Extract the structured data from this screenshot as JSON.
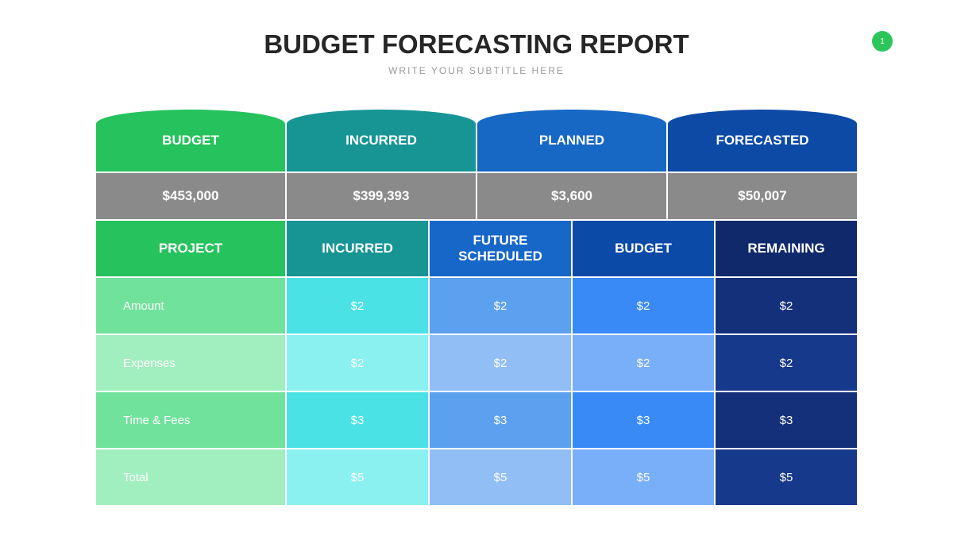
{
  "header": {
    "title": "BUDGET FORECASTING REPORT",
    "subtitle": "WRITE YOUR SUBTITLE HERE",
    "page_number": "1"
  },
  "summary": {
    "labels": [
      "BUDGET",
      "INCURRED",
      "PLANNED",
      "FORECASTED"
    ],
    "values": [
      "$453,000",
      "$399,393",
      "$3,600",
      "$50,007"
    ]
  },
  "table": {
    "headers": [
      "PROJECT",
      "INCURRED",
      "FUTURE SCHEDULED",
      "BUDGET",
      "REMAINING"
    ],
    "rows": [
      [
        "Amount",
        "$2",
        "$2",
        "$2",
        "$2"
      ],
      [
        "Expenses",
        "$2",
        "$2",
        "$2",
        "$2"
      ],
      [
        "Time & Fees",
        "$3",
        "$3",
        "$3",
        "$3"
      ],
      [
        "Total",
        "$5",
        "$5",
        "$5",
        "$5"
      ]
    ]
  }
}
